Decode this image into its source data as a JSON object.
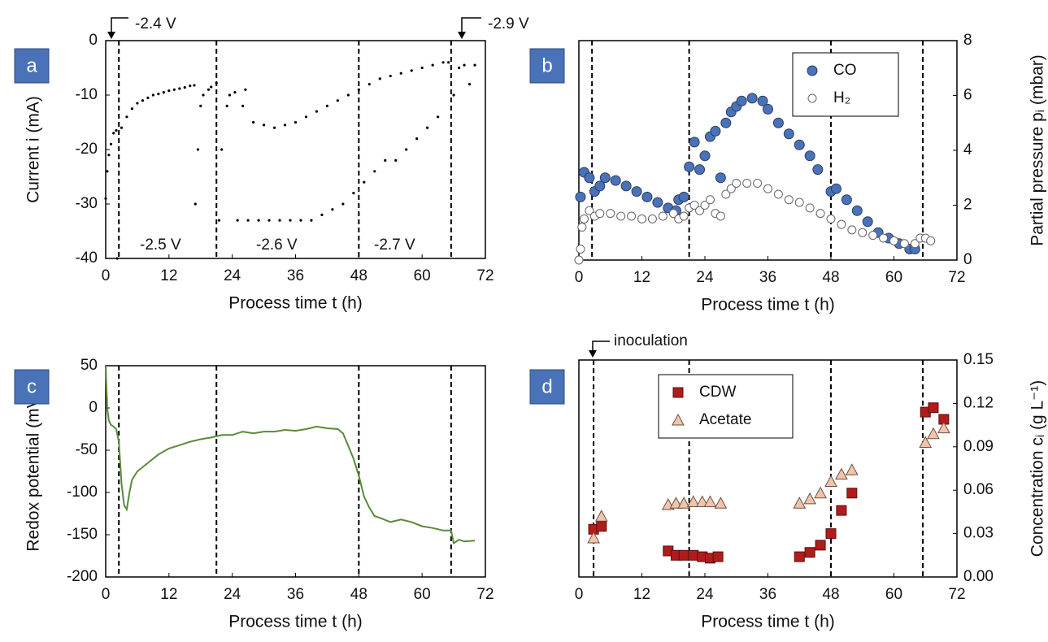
{
  "chart_data": [
    {
      "type": "scatter",
      "panel_label": "a",
      "xlabel": "Process time t (h)",
      "ylabel": "Current i (mA)",
      "xlim": [
        0,
        72
      ],
      "xticks": [
        0,
        12,
        24,
        36,
        48,
        60,
        72
      ],
      "ylim": [
        -40,
        0
      ],
      "yticks": [
        -40,
        -30,
        -20,
        -10,
        0
      ],
      "y_axis_side": "left",
      "vlines": [
        2.5,
        21,
        48,
        65.5
      ],
      "annotations": [
        "-2.4 V",
        "-2.9 V",
        "-2.5 V",
        "-2.6 V",
        "-2.7 V"
      ],
      "series": [
        {
          "color": "#000000",
          "marker": "dot",
          "x": [
            0,
            0.3,
            0.6,
            1,
            1.5,
            2,
            2.2,
            3,
            4,
            5,
            6,
            7,
            8,
            9,
            10,
            11,
            12,
            13,
            14,
            15,
            16,
            16.8,
            17,
            17.5,
            18,
            18.5,
            19.5,
            20,
            21,
            21.5,
            22,
            23,
            23.5,
            24.5,
            25,
            26,
            26.5,
            27,
            28,
            29,
            30,
            31,
            32,
            33,
            34,
            35,
            36,
            37,
            38,
            39,
            40,
            41,
            42,
            43,
            44,
            45,
            46,
            47,
            48,
            49,
            50,
            51,
            52,
            53,
            54,
            55,
            56,
            57,
            58,
            59,
            60,
            61,
            62,
            63,
            64,
            65,
            66,
            67,
            68,
            69,
            70
          ],
          "values": [
            -29,
            -24,
            -21,
            -19,
            -17,
            -16.5,
            -40,
            -16,
            -14,
            -12.5,
            -11.5,
            -11,
            -10.5,
            -10,
            -9.8,
            -9.5,
            -9.2,
            -9,
            -8.8,
            -8.6,
            -8.3,
            -8.2,
            -30,
            -20,
            -12,
            -10,
            -9,
            -8.5,
            -7.8,
            -33,
            -20,
            -12,
            -10,
            -9.5,
            -33,
            -12,
            -9,
            -33,
            -15,
            -33,
            -15.5,
            -33,
            -16,
            -33,
            -15.5,
            -33,
            -15,
            -33,
            -14,
            -33,
            -13,
            -32,
            -12,
            -31,
            -11,
            -30,
            -10,
            -28,
            -9,
            -26,
            -8,
            -24,
            -7,
            -22,
            -6.5,
            -22,
            -6,
            -20,
            -5.5,
            -18,
            -5,
            -16,
            -4.5,
            -14,
            -4,
            -4,
            -10,
            -5,
            -4.5,
            -8,
            -4.5
          ]
        }
      ]
    },
    {
      "type": "scatter",
      "panel_label": "b",
      "xlabel": "Process time t (h)",
      "ylabel": "Partial pressure pᵢ (mbar)",
      "xlim": [
        0,
        72
      ],
      "xticks": [
        0,
        12,
        24,
        36,
        48,
        60,
        72
      ],
      "ylim": [
        0,
        8
      ],
      "yticks": [
        0,
        2,
        4,
        6,
        8
      ],
      "y_axis_side": "right",
      "vlines": [
        2.5,
        21,
        48,
        65.5
      ],
      "legend": "upper-right",
      "series": [
        {
          "name": "CO",
          "color": "#4a72b8",
          "marker": "circle",
          "x": [
            0.3,
            1,
            2,
            3,
            4,
            5,
            7,
            9,
            11,
            13,
            15,
            17,
            18.5,
            19,
            20,
            21,
            22,
            23,
            24,
            25,
            26,
            27,
            28,
            29,
            30,
            31,
            33,
            35,
            36,
            38,
            40,
            42,
            44,
            45.5,
            48,
            49,
            51,
            53,
            55,
            57,
            59,
            61,
            63,
            64
          ],
          "values": [
            2.3,
            3.2,
            3.0,
            2.5,
            2.7,
            3.0,
            2.9,
            2.7,
            2.5,
            2.3,
            2.1,
            1.9,
            1.8,
            2.2,
            2.3,
            3.4,
            4.3,
            3.3,
            3.8,
            4.5,
            4.7,
            3.0,
            5.0,
            5.4,
            5.6,
            5.8,
            5.9,
            5.8,
            5.5,
            5.0,
            4.6,
            4.2,
            3.8,
            3.3,
            2.5,
            2.6,
            2.2,
            1.8,
            1.4,
            1.0,
            0.8,
            0.6,
            0.4,
            0.4
          ]
        },
        {
          "name": "H₂",
          "color": "#ffffff",
          "marker": "open-circle",
          "x": [
            0,
            0.3,
            0.6,
            1,
            2,
            3,
            4,
            6,
            8,
            10,
            12,
            14,
            16,
            18,
            19,
            20,
            21,
            22,
            23,
            24,
            25,
            26,
            27,
            28,
            29,
            30,
            32,
            34,
            36,
            38,
            40,
            42,
            44,
            46,
            48,
            50,
            52,
            54,
            56,
            58,
            60,
            62,
            64,
            65,
            66,
            67
          ],
          "values": [
            0,
            0.4,
            1.2,
            1.5,
            1.8,
            1.6,
            1.7,
            1.7,
            1.6,
            1.6,
            1.5,
            1.5,
            1.6,
            1.7,
            1.5,
            1.6,
            1.9,
            2.0,
            1.8,
            2.0,
            2.2,
            1.7,
            1.6,
            2.4,
            2.6,
            2.8,
            2.8,
            2.8,
            2.6,
            2.4,
            2.2,
            2.1,
            1.9,
            1.7,
            1.5,
            1.3,
            1.1,
            1.0,
            0.9,
            0.8,
            0.7,
            0.6,
            0.6,
            0.8,
            0.8,
            0.7
          ]
        }
      ]
    },
    {
      "type": "line",
      "panel_label": "c",
      "xlabel": "Process time t (h)",
      "ylabel": "Redox potential (mV)",
      "xlim": [
        0,
        72
      ],
      "xticks": [
        0,
        12,
        24,
        36,
        48,
        60,
        72
      ],
      "ylim": [
        -200,
        50
      ],
      "yticks": [
        -200,
        -150,
        -100,
        -50,
        0,
        50
      ],
      "y_axis_side": "left",
      "vlines": [
        2.5,
        21,
        48,
        65.5
      ],
      "series": [
        {
          "color": "#5a8a3a",
          "x": [
            0,
            0.3,
            0.6,
            1,
            1.5,
            2,
            2.5,
            3,
            3.5,
            4,
            4.5,
            5,
            6,
            8,
            10,
            12,
            14,
            16,
            18,
            20,
            22,
            24,
            26,
            28,
            30,
            32,
            34,
            36,
            38,
            40,
            42,
            44,
            45,
            46,
            47,
            48,
            49,
            50,
            51,
            52,
            54,
            56,
            58,
            60,
            62,
            64,
            65.5,
            66,
            67,
            68,
            70
          ],
          "values": [
            50,
            0,
            -15,
            -20,
            -22,
            -25,
            -40,
            -90,
            -115,
            -120,
            -100,
            -85,
            -75,
            -65,
            -55,
            -48,
            -44,
            -40,
            -37,
            -35,
            -32,
            -32,
            -28,
            -30,
            -28,
            -28,
            -26,
            -27,
            -25,
            -22,
            -24,
            -25,
            -30,
            -45,
            -60,
            -80,
            -105,
            -118,
            -128,
            -130,
            -135,
            -132,
            -135,
            -140,
            -142,
            -145,
            -145,
            -160,
            -156,
            -158,
            -157
          ]
        }
      ]
    },
    {
      "type": "scatter",
      "panel_label": "d",
      "xlabel": "Process time t (h)",
      "ylabel": "Concentration cᵢ (g L⁻¹)",
      "xlim": [
        0,
        72
      ],
      "xticks": [
        0,
        12,
        24,
        36,
        48,
        60,
        72
      ],
      "ylim": [
        0,
        0.15
      ],
      "yticks": [
        {
          "value": 0,
          "label": "0.00"
        },
        {
          "value": 0.03,
          "label": "0.03"
        },
        {
          "value": 0.06,
          "label": "0.06"
        },
        {
          "value": 0.09,
          "label": "0.09"
        },
        {
          "value": 0.12,
          "label": "0.12"
        },
        {
          "value": 0.15,
          "label": "0.15"
        }
      ],
      "y_axis_side": "right",
      "vlines": [
        2.8,
        21,
        48,
        65.5
      ],
      "legend": "upper-left",
      "annotations": [
        "inoculation"
      ],
      "series": [
        {
          "name": "CDW",
          "color": "#b01c1c",
          "marker": "square",
          "x": [
            2.8,
            4.3,
            17,
            18.5,
            20,
            21.8,
            23.5,
            25,
            26.5,
            42,
            44,
            46,
            48,
            50,
            52,
            66,
            67.5,
            69.5
          ],
          "values": [
            0.033,
            0.035,
            0.018,
            0.015,
            0.015,
            0.015,
            0.014,
            0.013,
            0.014,
            0.014,
            0.017,
            0.022,
            0.03,
            0.046,
            0.058,
            0.114,
            0.117,
            0.109
          ]
        },
        {
          "name": "Acetate",
          "color": "#f2c4ac",
          "marker": "triangle",
          "x": [
            2.8,
            4.3,
            17,
            18.5,
            20,
            21.8,
            23.5,
            25,
            27,
            42,
            44,
            46,
            48,
            50,
            52,
            66,
            67.5,
            69.5
          ],
          "values": [
            0.027,
            0.042,
            0.05,
            0.051,
            0.051,
            0.052,
            0.052,
            0.052,
            0.051,
            0.051,
            0.054,
            0.058,
            0.066,
            0.071,
            0.074,
            0.093,
            0.099,
            0.103
          ]
        }
      ]
    }
  ]
}
